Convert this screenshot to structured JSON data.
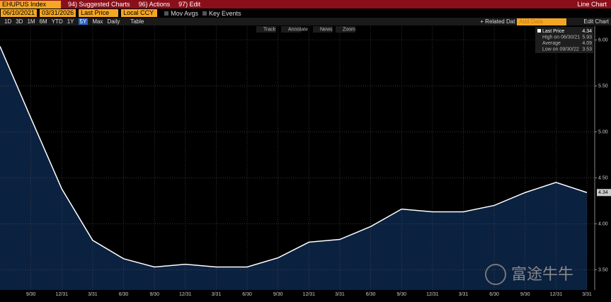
{
  "ui": {
    "security": "EHUPUS Index",
    "menus": [
      "94) Suggested Charts",
      "96) Actions",
      "97) Edit"
    ],
    "view": "Line Chart",
    "start_date": "06/10/2021",
    "end_date": "03/31/2026",
    "field": "Last Price",
    "currency": "Local CCY",
    "toggles": [
      "Mov Avgs",
      "Key Events"
    ],
    "periods": [
      "1D",
      "3D",
      "1M",
      "6M",
      "YTD",
      "1Y",
      "5Y",
      "Max"
    ],
    "frequency": "Daily",
    "table": "Table",
    "related": "+ Related Dat",
    "add_data": "Add Data",
    "edit_chart": "Edit Chart",
    "tools": [
      "Track",
      "Annotate",
      "News",
      "Zoom"
    ],
    "legend": [
      {
        "label": "Last Price",
        "value": "4.34"
      },
      {
        "label": "High on 06/30/21",
        "value": "5.93"
      },
      {
        "label": "Average",
        "value": "4.09"
      },
      {
        "label": "Low on 09/30/22",
        "value": "3.53"
      }
    ],
    "last_tag": "4.34",
    "watermark": "富途牛牛"
  },
  "chart_data": {
    "type": "area",
    "categories": [
      null,
      "9/30",
      "12/31",
      "3/31",
      "6/30",
      "9/30",
      "12/31",
      "3/31",
      "6/30",
      "9/30",
      "12/31",
      "3/31",
      "6/30",
      "9/30",
      "12/31",
      "3/31",
      "6/30",
      "9/30",
      "12/31",
      "3/31"
    ],
    "series": [
      {
        "name": "Last Price",
        "color": "#ffffff",
        "values": [
          5.93,
          5.15,
          4.38,
          3.82,
          3.62,
          3.53,
          3.56,
          3.53,
          3.53,
          3.63,
          3.8,
          3.83,
          3.97,
          4.16,
          4.13,
          4.13,
          4.2,
          4.34,
          4.45,
          4.34
        ]
      }
    ],
    "fill": "#0b2140",
    "ylim": [
      3.28,
      6.15
    ],
    "yticks": [
      {
        "value": 3.5,
        "label": "3.50"
      },
      {
        "value": 4,
        "label": "4.00"
      },
      {
        "value": 4.5,
        "label": "4.50"
      },
      {
        "value": 5,
        "label": "5.00"
      },
      {
        "value": 5.5,
        "label": "5.50"
      },
      {
        "value": 6,
        "label": "6.00"
      }
    ],
    "grid": true
  }
}
